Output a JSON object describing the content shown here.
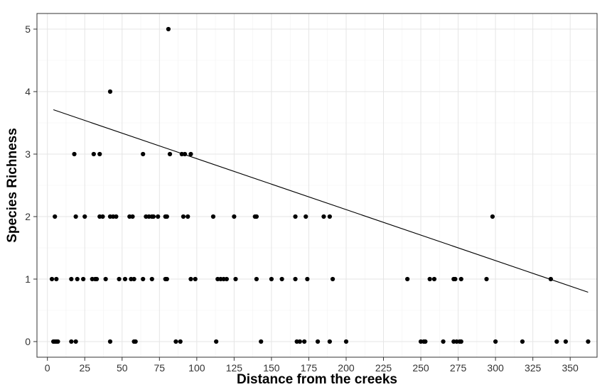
{
  "chart_data": {
    "type": "scatter",
    "xlabel": "Distance from the creeks",
    "ylabel": "Species Richness",
    "xlim": [
      -7,
      368
    ],
    "ylim": [
      -0.25,
      5.25
    ],
    "x_ticks": [
      0,
      25,
      50,
      75,
      100,
      125,
      150,
      175,
      200,
      225,
      250,
      275,
      300,
      325,
      350
    ],
    "y_ticks": [
      0,
      1,
      2,
      3,
      4,
      5
    ],
    "grid": true,
    "legend": "none",
    "point_color": "#000000",
    "points": [
      [
        4,
        0
      ],
      [
        5,
        0
      ],
      [
        6,
        0
      ],
      [
        7,
        0
      ],
      [
        16,
        0
      ],
      [
        19,
        0
      ],
      [
        42,
        0
      ],
      [
        58,
        0
      ],
      [
        59,
        0
      ],
      [
        86,
        0
      ],
      [
        89,
        0
      ],
      [
        113,
        0
      ],
      [
        143,
        0
      ],
      [
        167,
        0
      ],
      [
        169,
        0
      ],
      [
        172,
        0
      ],
      [
        181,
        0
      ],
      [
        189,
        0
      ],
      [
        200,
        0
      ],
      [
        250,
        0
      ],
      [
        252,
        0
      ],
      [
        253,
        0
      ],
      [
        265,
        0
      ],
      [
        272,
        0
      ],
      [
        274,
        0
      ],
      [
        276,
        0
      ],
      [
        277,
        0
      ],
      [
        300,
        0
      ],
      [
        318,
        0
      ],
      [
        341,
        0
      ],
      [
        347,
        0
      ],
      [
        362,
        0
      ],
      [
        3,
        1
      ],
      [
        6,
        1
      ],
      [
        16,
        1
      ],
      [
        20,
        1
      ],
      [
        24,
        1
      ],
      [
        30,
        1
      ],
      [
        32,
        1
      ],
      [
        33,
        1
      ],
      [
        39,
        1
      ],
      [
        48,
        1
      ],
      [
        52,
        1
      ],
      [
        56,
        1
      ],
      [
        58,
        1
      ],
      [
        64,
        1
      ],
      [
        70,
        1
      ],
      [
        79,
        1
      ],
      [
        80,
        1
      ],
      [
        96,
        1
      ],
      [
        99,
        1
      ],
      [
        114,
        1
      ],
      [
        116,
        1
      ],
      [
        118,
        1
      ],
      [
        120,
        1
      ],
      [
        126,
        1
      ],
      [
        140,
        1
      ],
      [
        150,
        1
      ],
      [
        157,
        1
      ],
      [
        166,
        1
      ],
      [
        174,
        1
      ],
      [
        191,
        1
      ],
      [
        241,
        1
      ],
      [
        256,
        1
      ],
      [
        259,
        1
      ],
      [
        272,
        1
      ],
      [
        273,
        1
      ],
      [
        277,
        1
      ],
      [
        294,
        1
      ],
      [
        337,
        1
      ],
      [
        5,
        2
      ],
      [
        19,
        2
      ],
      [
        25,
        2
      ],
      [
        35,
        2
      ],
      [
        37,
        2
      ],
      [
        42,
        2
      ],
      [
        44,
        2
      ],
      [
        46,
        2
      ],
      [
        55,
        2
      ],
      [
        57,
        2
      ],
      [
        66,
        2
      ],
      [
        68,
        2
      ],
      [
        70,
        2
      ],
      [
        71,
        2
      ],
      [
        74,
        2
      ],
      [
        79,
        2
      ],
      [
        80,
        2
      ],
      [
        91,
        2
      ],
      [
        94,
        2
      ],
      [
        111,
        2
      ],
      [
        125,
        2
      ],
      [
        139,
        2
      ],
      [
        140,
        2
      ],
      [
        166,
        2
      ],
      [
        173,
        2
      ],
      [
        185,
        2
      ],
      [
        189,
        2
      ],
      [
        298,
        2
      ],
      [
        18,
        3
      ],
      [
        31,
        3
      ],
      [
        35,
        3
      ],
      [
        64,
        3
      ],
      [
        82,
        3
      ],
      [
        90,
        3
      ],
      [
        92,
        3
      ],
      [
        96,
        3
      ],
      [
        42,
        4
      ],
      [
        81,
        5
      ]
    ],
    "trend_line": {
      "x": [
        4,
        362
      ],
      "y": [
        3.71,
        0.79
      ]
    }
  }
}
